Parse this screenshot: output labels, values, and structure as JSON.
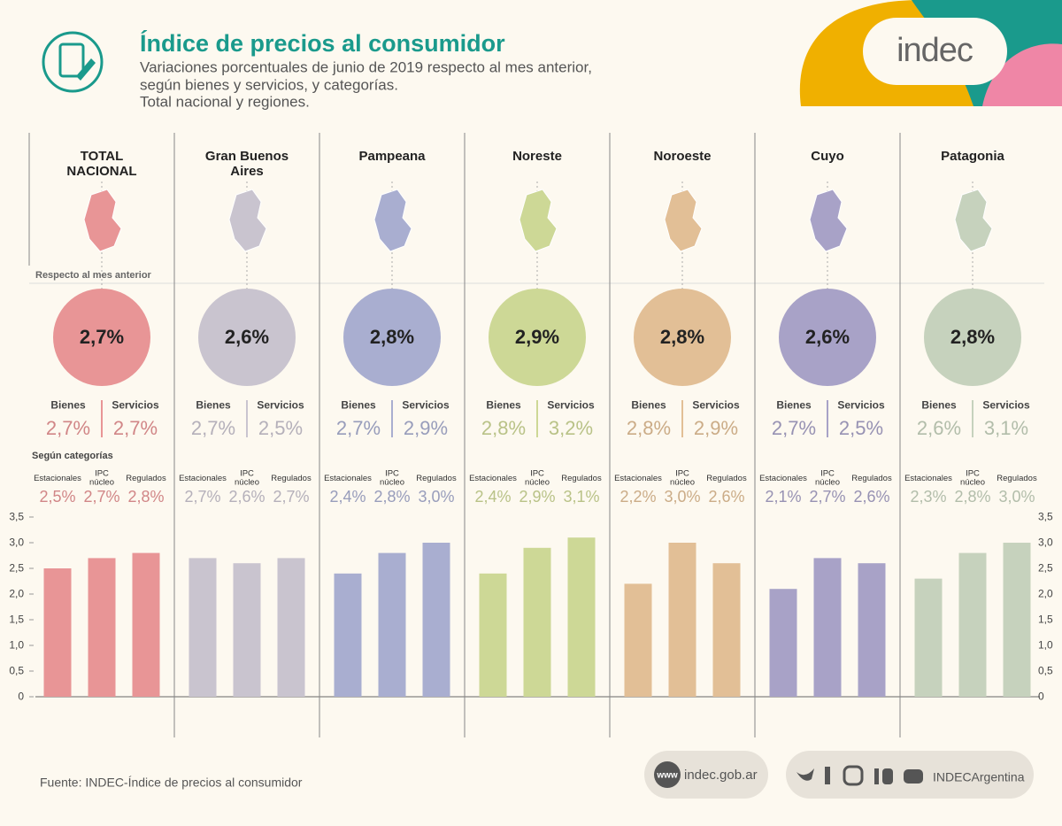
{
  "header": {
    "title": "Índice de precios al consumidor",
    "subtitle": [
      "Variaciones porcentuales de junio de 2019 respecto al mes anterior,",
      "según bienes y servicios, y categorías.",
      "Total nacional y regiones."
    ],
    "logo": "indec"
  },
  "labels": {
    "previous_month": "Respecto al mes anterior",
    "goods": "Bienes",
    "services": "Servicios",
    "by_category": "Según categorías"
  },
  "chart_data": {
    "type": "bar",
    "categories": [
      "Estacionales",
      "IPC núcleo",
      "Regulados"
    ],
    "ylim": [
      0,
      3.5
    ],
    "yticks": [
      0,
      {
        "value": 0.5,
        "label": "0,5"
      },
      {
        "value": 1,
        "label": "1,0"
      },
      {
        "value": 1.5,
        "label": "1,5"
      },
      {
        "value": 2,
        "label": "2,0"
      },
      {
        "value": 2.5,
        "label": "2,5"
      },
      {
        "value": 3,
        "label": "3,0"
      },
      {
        "value": 3.5,
        "label": "3,5"
      }
    ],
    "regions": [
      {
        "name": "TOTAL NACIONAL",
        "color": "#e89596",
        "headline": {
          "values": [
            2.7,
            2.7,
            2.7
          ],
          "value_labels": [
            "2,7%",
            "2,7%",
            "2,7%"
          ]
        },
        "values": [
          2.5,
          2.7,
          2.8
        ],
        "value_labels": [
          "2,5%",
          "2,7%",
          "2,8%"
        ]
      },
      {
        "name": "Gran Buenos Aires",
        "color": "#c9c4cf",
        "headline": {
          "values": [
            2.6,
            2.7,
            2.5
          ],
          "value_labels": [
            "2,6%",
            "2,7%",
            "2,5%"
          ]
        },
        "values": [
          2.7,
          2.6,
          2.7
        ],
        "value_labels": [
          "2,7%",
          "2,6%",
          "2,7%"
        ]
      },
      {
        "name": "Pampeana",
        "color": "#a9aed0",
        "headline": {
          "values": [
            2.8,
            2.7,
            2.9
          ],
          "value_labels": [
            "2,8%",
            "2,7%",
            "2,9%"
          ]
        },
        "values": [
          2.4,
          2.8,
          3.0
        ],
        "value_labels": [
          "2,4%",
          "2,8%",
          "3,0%"
        ]
      },
      {
        "name": "Noreste",
        "color": "#cdd896",
        "headline": {
          "values": [
            2.9,
            2.8,
            3.2
          ],
          "value_labels": [
            "2,9%",
            "2,8%",
            "3,2%"
          ]
        },
        "values": [
          2.4,
          2.9,
          3.1
        ],
        "value_labels": [
          "2,4%",
          "2,9%",
          "3,1%"
        ]
      },
      {
        "name": "Noroeste",
        "color": "#e2bf96",
        "headline": {
          "values": [
            2.8,
            2.8,
            2.9
          ],
          "value_labels": [
            "2,8%",
            "2,8%",
            "2,9%"
          ]
        },
        "values": [
          2.2,
          3.0,
          2.6
        ],
        "value_labels": [
          "2,2%",
          "3,0%",
          "2,6%"
        ]
      },
      {
        "name": "Cuyo",
        "color": "#a8a2c7",
        "headline": {
          "values": [
            2.6,
            2.7,
            2.5
          ],
          "value_labels": [
            "2,6%",
            "2,7%",
            "2,5%"
          ]
        },
        "values": [
          2.1,
          2.7,
          2.6
        ],
        "value_labels": [
          "2,1%",
          "2,7%",
          "2,6%"
        ]
      },
      {
        "name": "Patagonia",
        "color": "#c6d2bd",
        "headline": {
          "values": [
            2.8,
            2.6,
            3.1
          ],
          "value_labels": [
            "2,8%",
            "2,6%",
            "3,1%"
          ]
        },
        "values": [
          2.3,
          2.8,
          3.0
        ],
        "value_labels": [
          "2,3%",
          "2,8%",
          "3,0%"
        ]
      }
    ]
  },
  "footer": {
    "source": "Fuente: INDEC-Índice de precios al consumidor",
    "www": "www",
    "website": "indec.gob.ar",
    "handle": "INDECArgentina"
  }
}
